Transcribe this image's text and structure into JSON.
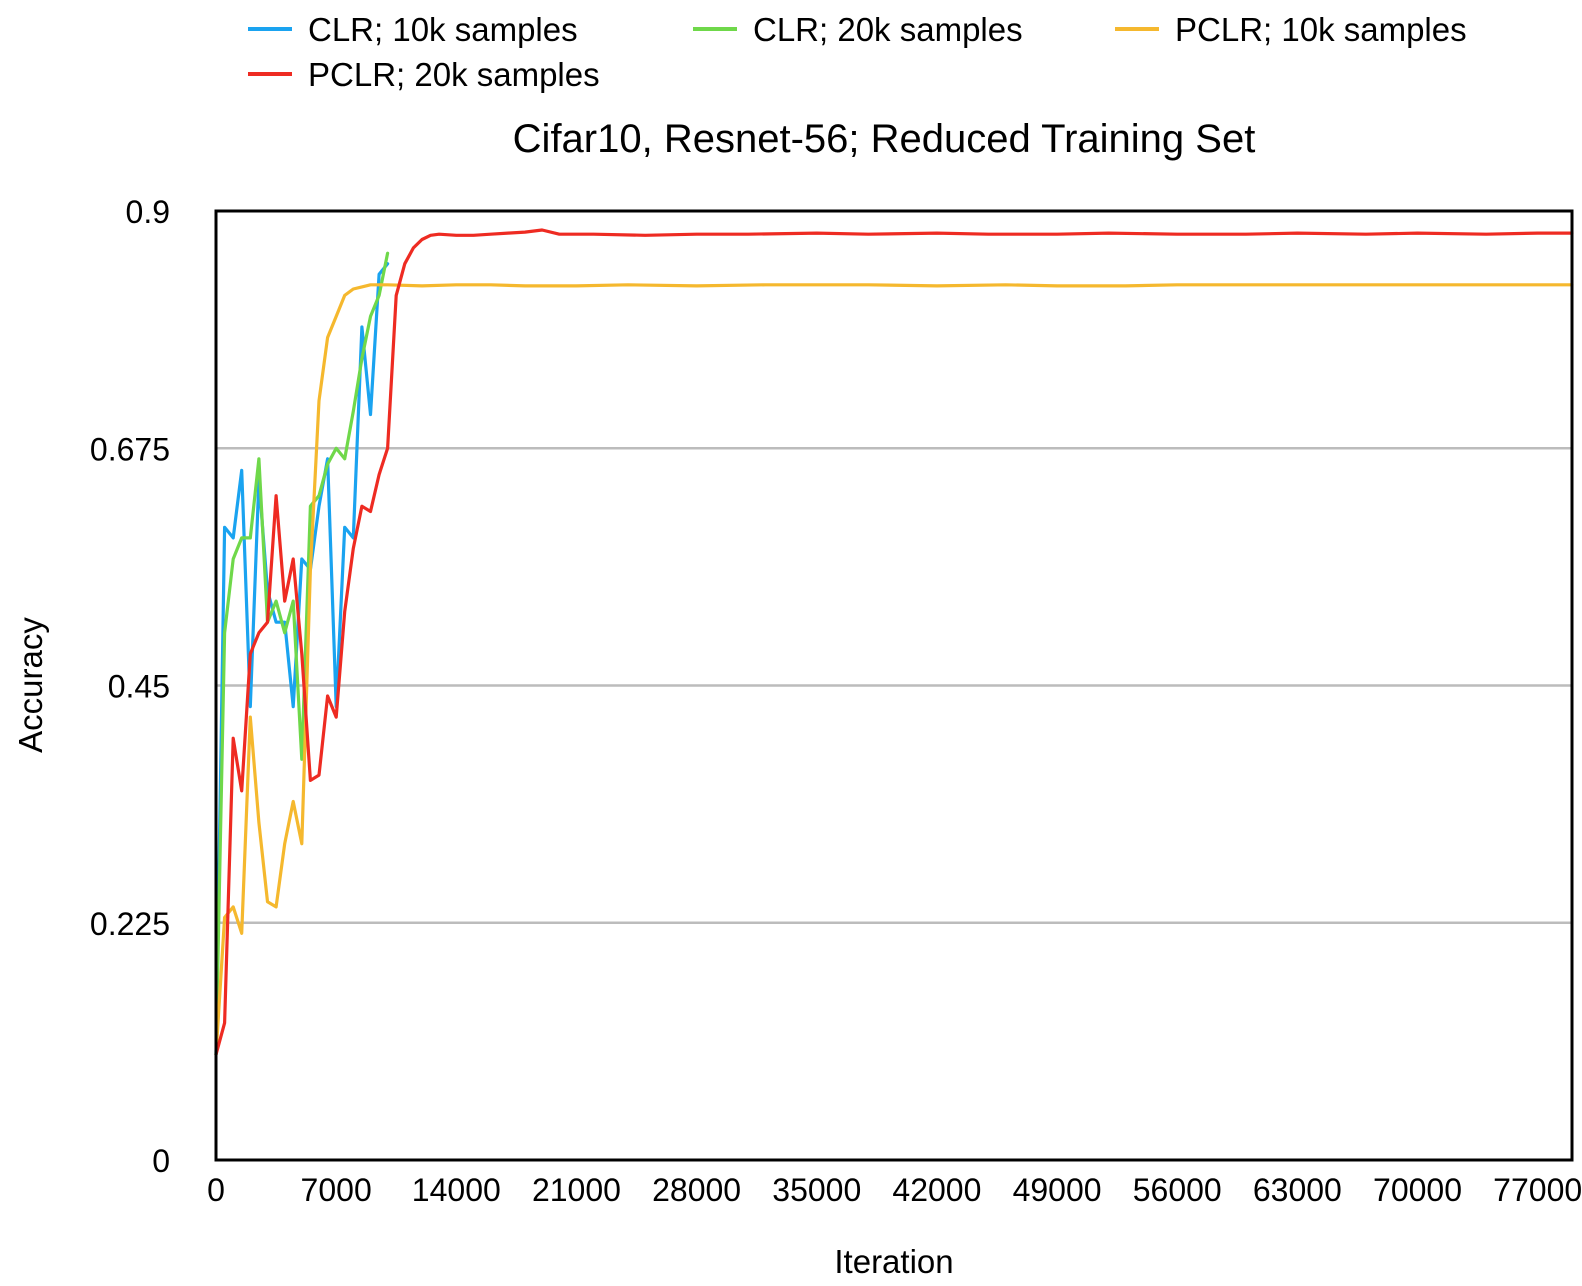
{
  "chart_data": {
    "type": "line",
    "title": "Cifar10, Resnet-56; Reduced Training Set",
    "xlabel": "Iteration",
    "ylabel": "Accuracy",
    "xlim": [
      0,
      79000
    ],
    "ylim": [
      0,
      0.9
    ],
    "x_ticks": [
      0,
      7000,
      14000,
      21000,
      28000,
      35000,
      42000,
      49000,
      56000,
      63000,
      70000,
      77000
    ],
    "y_ticks": [
      0,
      0.225,
      0.45,
      0.675,
      0.9
    ],
    "y_tick_labels": [
      "0",
      "0.225",
      "0.45",
      "0.675",
      "0.9"
    ],
    "grid": "horizontal",
    "legend_position": "top",
    "series": [
      {
        "name": "CLR; 10k samples",
        "color": "#1aa3f0",
        "points": [
          [
            0,
            0.1
          ],
          [
            500,
            0.6
          ],
          [
            1000,
            0.59
          ],
          [
            1500,
            0.654
          ],
          [
            2000,
            0.43
          ],
          [
            2500,
            0.645
          ],
          [
            3000,
            0.54
          ],
          [
            3500,
            0.51
          ],
          [
            4000,
            0.51
          ],
          [
            4500,
            0.43
          ],
          [
            5000,
            0.57
          ],
          [
            5500,
            0.56
          ],
          [
            6000,
            0.62
          ],
          [
            6500,
            0.665
          ],
          [
            7000,
            0.43
          ],
          [
            7500,
            0.6
          ],
          [
            8000,
            0.59
          ],
          [
            8500,
            0.79
          ],
          [
            9000,
            0.707
          ],
          [
            9500,
            0.84
          ],
          [
            10000,
            0.85
          ]
        ]
      },
      {
        "name": "CLR; 20k samples",
        "color": "#6fd84a",
        "points": [
          [
            0,
            0.1
          ],
          [
            500,
            0.5
          ],
          [
            1000,
            0.57
          ],
          [
            1500,
            0.59
          ],
          [
            2000,
            0.59
          ],
          [
            2500,
            0.665
          ],
          [
            3000,
            0.51
          ],
          [
            3500,
            0.53
          ],
          [
            4000,
            0.5
          ],
          [
            4500,
            0.53
          ],
          [
            5000,
            0.38
          ],
          [
            5500,
            0.62
          ],
          [
            6000,
            0.63
          ],
          [
            6500,
            0.66
          ],
          [
            7000,
            0.675
          ],
          [
            7500,
            0.665
          ],
          [
            8000,
            0.71
          ],
          [
            8500,
            0.76
          ],
          [
            9000,
            0.8
          ],
          [
            9500,
            0.82
          ],
          [
            10000,
            0.86
          ]
        ]
      },
      {
        "name": "PCLR; 10k samples",
        "color": "#f5b82e",
        "points": [
          [
            0,
            0.1
          ],
          [
            500,
            0.23
          ],
          [
            1000,
            0.24
          ],
          [
            1500,
            0.215
          ],
          [
            2000,
            0.42
          ],
          [
            2500,
            0.32
          ],
          [
            3000,
            0.245
          ],
          [
            3500,
            0.24
          ],
          [
            4000,
            0.3
          ],
          [
            4500,
            0.34
          ],
          [
            5000,
            0.3
          ],
          [
            5500,
            0.56
          ],
          [
            6000,
            0.72
          ],
          [
            6500,
            0.78
          ],
          [
            7000,
            0.8
          ],
          [
            7500,
            0.82
          ],
          [
            8000,
            0.826
          ],
          [
            8500,
            0.828
          ],
          [
            9000,
            0.83
          ],
          [
            10000,
            0.83
          ],
          [
            12000,
            0.829
          ],
          [
            14000,
            0.83
          ],
          [
            16000,
            0.83
          ],
          [
            18000,
            0.829
          ],
          [
            21000,
            0.829
          ],
          [
            24000,
            0.83
          ],
          [
            28000,
            0.829
          ],
          [
            32000,
            0.83
          ],
          [
            35000,
            0.83
          ],
          [
            38000,
            0.83
          ],
          [
            42000,
            0.829
          ],
          [
            46000,
            0.83
          ],
          [
            49000,
            0.829
          ],
          [
            53000,
            0.829
          ],
          [
            56000,
            0.83
          ],
          [
            60000,
            0.83
          ],
          [
            63000,
            0.83
          ],
          [
            67000,
            0.83
          ],
          [
            70000,
            0.83
          ],
          [
            74000,
            0.83
          ],
          [
            77000,
            0.83
          ],
          [
            79000,
            0.83
          ]
        ]
      },
      {
        "name": "PCLR; 20k samples",
        "color": "#ee2b22",
        "points": [
          [
            0,
            0.1
          ],
          [
            500,
            0.13
          ],
          [
            1000,
            0.4
          ],
          [
            1500,
            0.35
          ],
          [
            2000,
            0.48
          ],
          [
            2500,
            0.5
          ],
          [
            3000,
            0.51
          ],
          [
            3500,
            0.63
          ],
          [
            4000,
            0.53
          ],
          [
            4500,
            0.57
          ],
          [
            5000,
            0.48
          ],
          [
            5500,
            0.36
          ],
          [
            6000,
            0.365
          ],
          [
            6500,
            0.44
          ],
          [
            7000,
            0.42
          ],
          [
            7500,
            0.52
          ],
          [
            8000,
            0.58
          ],
          [
            8500,
            0.62
          ],
          [
            9000,
            0.615
          ],
          [
            9500,
            0.65
          ],
          [
            10000,
            0.675
          ],
          [
            10500,
            0.82
          ],
          [
            11000,
            0.85
          ],
          [
            11500,
            0.865
          ],
          [
            12000,
            0.873
          ],
          [
            12500,
            0.877
          ],
          [
            13000,
            0.878
          ],
          [
            14000,
            0.877
          ],
          [
            15000,
            0.877
          ],
          [
            16000,
            0.878
          ],
          [
            17000,
            0.879
          ],
          [
            18000,
            0.88
          ],
          [
            19000,
            0.882
          ],
          [
            20000,
            0.878
          ],
          [
            22000,
            0.878
          ],
          [
            25000,
            0.877
          ],
          [
            28000,
            0.878
          ],
          [
            31000,
            0.878
          ],
          [
            35000,
            0.879
          ],
          [
            38000,
            0.878
          ],
          [
            42000,
            0.879
          ],
          [
            45000,
            0.878
          ],
          [
            49000,
            0.878
          ],
          [
            52000,
            0.879
          ],
          [
            56000,
            0.878
          ],
          [
            60000,
            0.878
          ],
          [
            63000,
            0.879
          ],
          [
            67000,
            0.878
          ],
          [
            70000,
            0.879
          ],
          [
            74000,
            0.878
          ],
          [
            77000,
            0.879
          ],
          [
            79000,
            0.879
          ]
        ]
      }
    ]
  }
}
